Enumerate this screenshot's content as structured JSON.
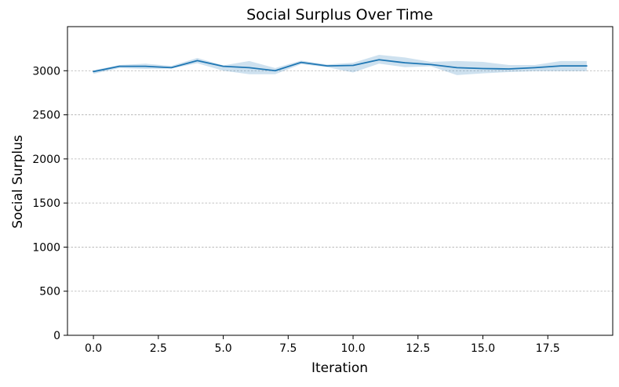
{
  "chart_data": {
    "type": "line",
    "title": "Social Surplus Over Time",
    "xlabel": "Iteration",
    "ylabel": "Social Surplus",
    "xlim": [
      -1.0,
      20.0
    ],
    "ylim": [
      0,
      3500
    ],
    "xticks": [
      0.0,
      2.5,
      5.0,
      7.5,
      10.0,
      12.5,
      15.0,
      17.5
    ],
    "xtick_labels": [
      "0.0",
      "2.5",
      "5.0",
      "7.5",
      "10.0",
      "12.5",
      "15.0",
      "17.5"
    ],
    "yticks": [
      0,
      500,
      1000,
      1500,
      2000,
      2500,
      3000
    ],
    "ytick_labels": [
      "0",
      "500",
      "1000",
      "1500",
      "2000",
      "2500",
      "3000"
    ],
    "grid": "y-dashed",
    "legend": "none",
    "series": [
      {
        "color": "#1f77b4",
        "band_color": "#1f77b4",
        "x": [
          0,
          1,
          2,
          3,
          4,
          5,
          6,
          7,
          8,
          9,
          10,
          11,
          12,
          13,
          14,
          15,
          16,
          17,
          18,
          19
        ],
        "values": [
          2990,
          3050,
          3050,
          3035,
          3115,
          3050,
          3035,
          3000,
          3095,
          3055,
          3060,
          3125,
          3090,
          3070,
          3035,
          3025,
          3020,
          3035,
          3055,
          3055
        ],
        "lower": [
          2965,
          3030,
          3020,
          3025,
          3085,
          3000,
          2960,
          2960,
          3075,
          3040,
          2980,
          3080,
          3040,
          3050,
          2950,
          2970,
          2985,
          2995,
          2995,
          2995
        ],
        "upper": [
          3005,
          3065,
          3080,
          3055,
          3145,
          3060,
          3110,
          3030,
          3115,
          3070,
          3090,
          3180,
          3150,
          3100,
          3110,
          3100,
          3065,
          3065,
          3110,
          3110
        ]
      }
    ]
  }
}
